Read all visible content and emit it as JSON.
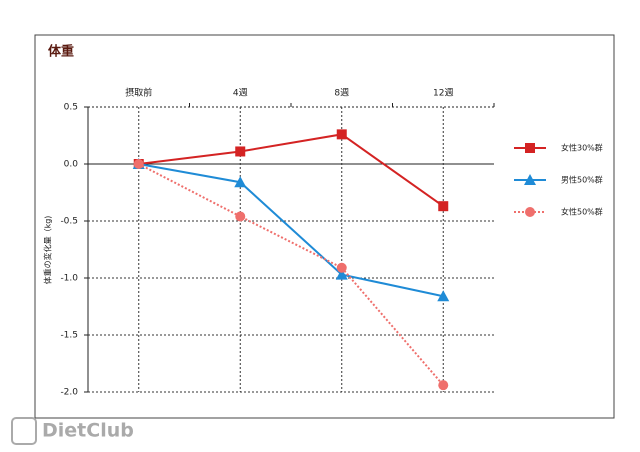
{
  "chart_data": {
    "type": "line",
    "title": "体重",
    "y_label": "体重の変化量（kg)",
    "categories": [
      "摂取前",
      "4週",
      "8週",
      "12週"
    ],
    "series": [
      {
        "name": "女性30%群",
        "color": "#d42323",
        "marker": "square",
        "line_style": "solid",
        "values": [
          0,
          0.11,
          0.26,
          -0.37
        ]
      },
      {
        "name": "男性50%群",
        "color": "#1f8bd6",
        "marker": "triangle",
        "line_style": "solid",
        "values": [
          0,
          -0.16,
          -0.97,
          -1.16
        ]
      },
      {
        "name": "女性50%群",
        "color": "#ef6f6c",
        "marker": "circle",
        "line_style": "dotted",
        "values": [
          0,
          -0.46,
          -0.91,
          -1.94
        ]
      }
    ],
    "ylim": [
      -2,
      0.5
    ],
    "yticks": [
      0.5,
      {
        "value": 0,
        "label": "0.0"
      },
      -0.5,
      {
        "value": -1,
        "label": "-1.0"
      },
      -1.5,
      {
        "value": -2,
        "label": "-2.0"
      }
    ],
    "grid": true,
    "legend": "right"
  },
  "watermark": "DietClub"
}
